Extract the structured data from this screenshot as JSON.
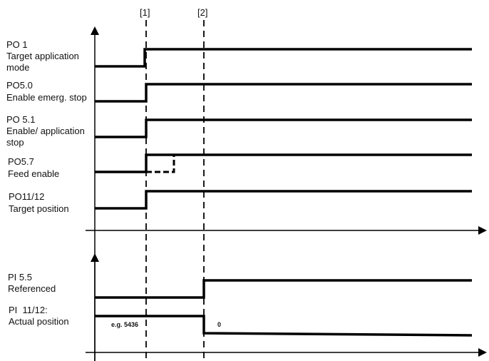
{
  "markers": [
    "[1]",
    "[2]"
  ],
  "outputs": [
    {
      "name": "PO 1",
      "desc": "Target application mode"
    },
    {
      "name": "PO5.0",
      "desc": "Enable emerg. stop"
    },
    {
      "name": "PO 5.1",
      "desc": "Enable/ application stop"
    },
    {
      "name": "PO5.7",
      "desc": "Feed enable"
    },
    {
      "name": "PO11/12",
      "desc": "Target position"
    }
  ],
  "inputs": [
    {
      "name": "PI 5.5",
      "desc": "Referenced"
    },
    {
      "name": "PI  11/12:",
      "desc": "Actual position"
    }
  ],
  "annotations": {
    "before": "e.g. 5436",
    "after": "0"
  }
}
